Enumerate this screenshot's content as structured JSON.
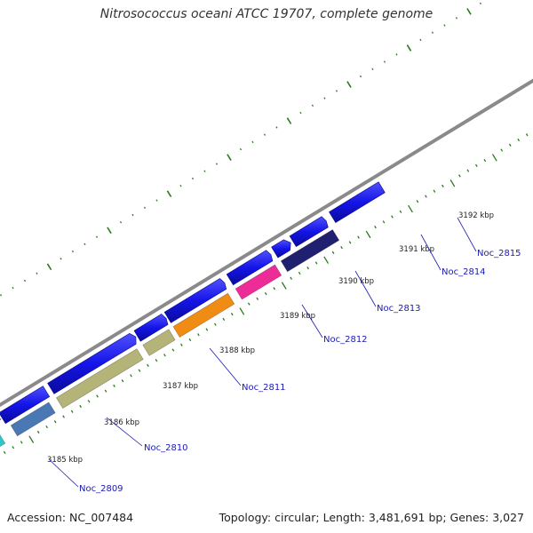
{
  "title": "Nitrosococcus oceani ATCC 19707, complete genome",
  "footer": {
    "accession": "Accession: NC_007484",
    "summary": "Topology: circular; Length: 3,481,691 bp; Genes: 3,027"
  },
  "colors": {
    "backbone": "#8a8a8a",
    "cds": "#1414e8",
    "tick": "#2a7a1c",
    "tick_label": "#222222",
    "gene_label": "#1a1ab4",
    "gene_line": "#1a1ab4"
  },
  "ticks": [
    "3185 kbp",
    "3186 kbp",
    "3187 kbp",
    "3188 kbp",
    "3189 kbp",
    "3190 kbp",
    "3191 kbp",
    "3192 kbp"
  ],
  "genes": [
    {
      "label": "Noc_2809",
      "color": "#2dc8c8"
    },
    {
      "label": "Noc_2810",
      "color": "#4a78b4"
    },
    {
      "label": "Noc_2811",
      "color": "#b4b478"
    },
    {
      "label": "Noc_2812",
      "color": "#b4b478"
    },
    {
      "label": "Noc_2813",
      "color": "#f08c14"
    },
    {
      "label": "Noc_2814",
      "color": "#ee2c98"
    },
    {
      "label": "Noc_2815",
      "color": "#202070"
    }
  ]
}
